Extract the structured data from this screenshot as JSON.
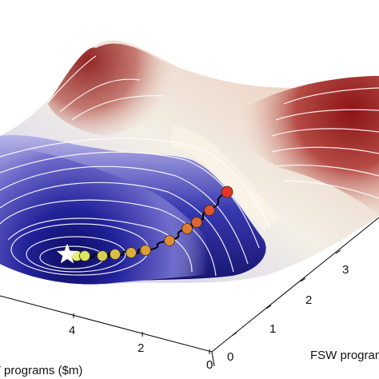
{
  "chart_data": {
    "type": "surface-3d",
    "x_axis": {
      "label": "FSW programs",
      "ticks": [
        "0",
        "1",
        "2",
        "3"
      ]
    },
    "y_axis": {
      "label": "T programs ($m)",
      "ticks": [
        "0",
        "2",
        "4"
      ]
    },
    "colormap": {
      "low": "#1a1a8c",
      "mid": "#f3efe6",
      "high": "#8b1a1a"
    },
    "optimum_marker": {
      "shape": "star",
      "color": "#ffffff"
    },
    "trajectory": {
      "line_color": "#000000",
      "points": [
        {
          "step": 1,
          "color": "#e8f070"
        },
        {
          "step": 2,
          "color": "#d9e860"
        },
        {
          "step": 3,
          "color": "#d8d050"
        },
        {
          "step": 4,
          "color": "#d8c048"
        },
        {
          "step": 5,
          "color": "#d9ae40"
        },
        {
          "step": 6,
          "color": "#db9c3a"
        },
        {
          "step": 7,
          "color": "#dd8a36"
        },
        {
          "step": 8,
          "color": "#df7a33"
        },
        {
          "step": 9,
          "color": "#e0652f"
        },
        {
          "step": 10,
          "color": "#e2522c"
        },
        {
          "step": 11,
          "color": "#e53325"
        }
      ]
    }
  }
}
